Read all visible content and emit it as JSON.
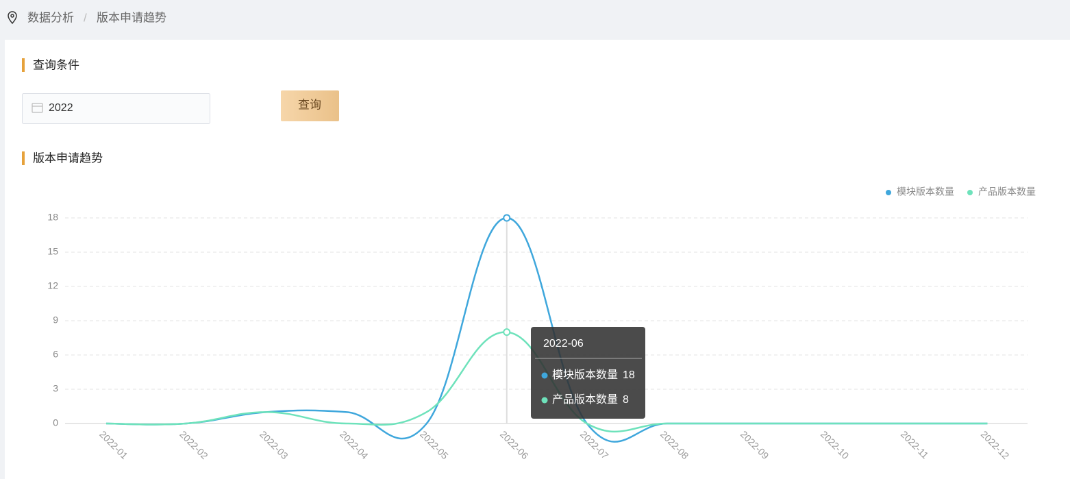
{
  "breadcrumb": {
    "items": [
      "数据分析",
      "版本申请趋势"
    ],
    "separator": "/"
  },
  "query": {
    "title": "查询条件",
    "year": "2022",
    "button": "查询"
  },
  "section_title": "版本申请趋势",
  "chart_data": {
    "type": "line",
    "smooth": true,
    "grid": true,
    "legend": "top-right",
    "categories": [
      "2022-01",
      "2022-02",
      "2022-03",
      "2022-04",
      "2022-05",
      "2022-06",
      "2022-07",
      "2022-08",
      "2022-09",
      "2022-10",
      "2022-11",
      "2022-12"
    ],
    "series": [
      {
        "name": "模块版本数量",
        "color": "#3fa7dc",
        "values": [
          0,
          0,
          1,
          1,
          0,
          18,
          0,
          0,
          0,
          0,
          0,
          0
        ]
      },
      {
        "name": "产品版本数量",
        "color": "#6ee2bb",
        "values": [
          0,
          0,
          1,
          0,
          1,
          8,
          0,
          0,
          0,
          0,
          0,
          0
        ]
      }
    ],
    "ylim": [
      0,
      18
    ],
    "yticks": [
      0,
      3,
      6,
      9,
      12,
      15,
      18
    ]
  }
}
